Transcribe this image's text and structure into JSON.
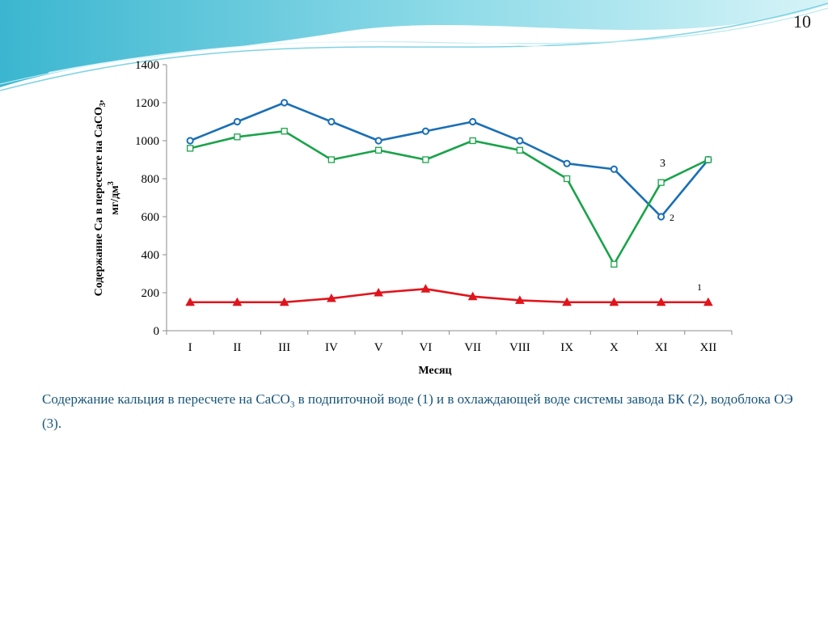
{
  "slide": {
    "page_number": "10",
    "colors": {
      "caption_text": "#17557a",
      "wave_dark": "#4fc3d8",
      "wave_light": "#c5eef5"
    }
  },
  "caption": {
    "part1": "Содержание кальция в пересчете на CaCO",
    "sub": "3",
    "part2": " в подпиточной  воде (1) и в охлаждающей воде системы завода БК (2), водоблока ОЭ (3)."
  },
  "chart_data": {
    "type": "line",
    "title": "",
    "xlabel": "Месяц",
    "ylabel_line1": "Содержание Са в пересчете на CaCO",
    "ylabel_sub": "3",
    "ylabel_line1_end": ",",
    "ylabel_line2": "мг/дм",
    "ylabel_sup": "3",
    "ylim": [
      0,
      1400
    ],
    "yticks": [
      0,
      200,
      400,
      600,
      800,
      1000,
      1200,
      1400
    ],
    "grid": false,
    "legend": "none",
    "categories": [
      "I",
      "II",
      "III",
      "IV",
      "V",
      "VI",
      "VII",
      "VIII",
      "IX",
      "X",
      "XI",
      "XII"
    ],
    "series": [
      {
        "label": "1",
        "color": "#e0151c",
        "marker": "triangle",
        "values": [
          150,
          150,
          150,
          170,
          200,
          220,
          180,
          160,
          150,
          150,
          150,
          150
        ]
      },
      {
        "label": "2",
        "color": "#1a6fb5",
        "marker": "circle",
        "values": [
          1000,
          1100,
          1200,
          1100,
          1000,
          1050,
          1100,
          1000,
          880,
          850,
          600,
          900
        ]
      },
      {
        "label": "3",
        "color": "#1aa34a",
        "marker": "square",
        "values": [
          960,
          1020,
          1050,
          900,
          950,
          900,
          1000,
          950,
          800,
          350,
          780,
          900
        ]
      }
    ]
  }
}
